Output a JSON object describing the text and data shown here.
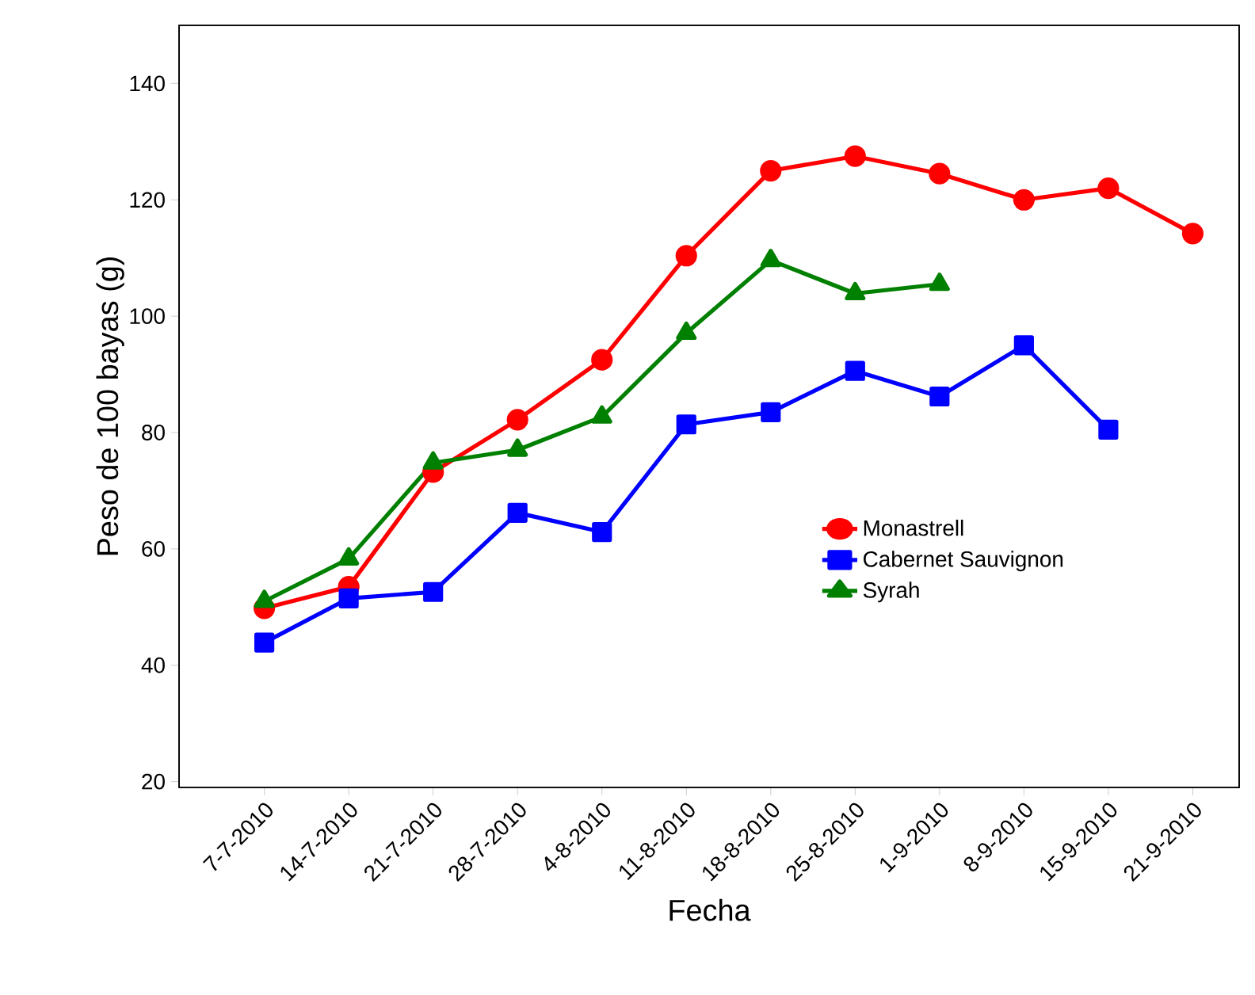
{
  "chart_data": {
    "type": "line",
    "xlabel": "Fecha",
    "ylabel": "Peso de 100 bayas (g)",
    "categories": [
      "7-7-2010",
      "14-7-2010",
      "21-7-2010",
      "28-7-2010",
      "4-8-2010",
      "11-8-2010",
      "18-8-2010",
      "25-8-2010",
      "1-9-2010",
      "8-9-2010",
      "15-9-2010",
      "21-9-2010"
    ],
    "series": [
      {
        "name": "Monastrell",
        "color": "#ff0000",
        "marker": "circle",
        "values": [
          49.8,
          53.5,
          73.2,
          82.2,
          92.5,
          110.4,
          125,
          127.5,
          124.5,
          120,
          122,
          114.2
        ]
      },
      {
        "name": "Cabernet Sauvignon",
        "color": "#0000ff",
        "marker": "square",
        "values": [
          43.9,
          51.5,
          52.6,
          66.2,
          62.9,
          81.4,
          83.5,
          90.6,
          86.2,
          95,
          80.5,
          null
        ]
      },
      {
        "name": "Syrah",
        "color": "#008000",
        "marker": "triangle",
        "values": [
          51,
          58.3,
          74.8,
          77,
          82.7,
          97.1,
          109.6,
          103.9,
          105.5,
          null,
          null,
          null
        ]
      }
    ],
    "ylim": [
      19,
      150
    ],
    "yticks": [
      20,
      40,
      60,
      80,
      100,
      120,
      140
    ],
    "grid": false,
    "legend": "right",
    "line_style": "solid"
  }
}
